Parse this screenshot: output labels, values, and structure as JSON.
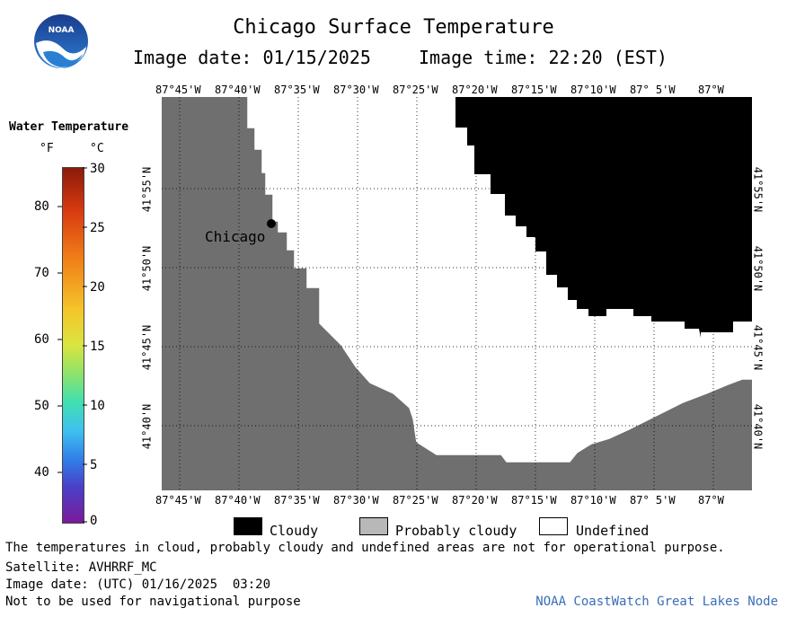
{
  "header": {
    "title": "Chicago Surface Temperature",
    "image_date_label": "Image date: 01/15/2025",
    "image_time_label": "Image time: 22:20 (EST)"
  },
  "logo": {
    "text": "NOAA"
  },
  "colorbar": {
    "title": "Water Temperature",
    "unit_f": "°F",
    "unit_c": "°C",
    "ticks_f": [
      "80",
      "70",
      "60",
      "50",
      "40"
    ],
    "ticks_c": [
      "30",
      "25",
      "20",
      "15",
      "10",
      "5",
      "0"
    ]
  },
  "map": {
    "lon_labels": [
      "87°45'W",
      "87°40'W",
      "87°35'W",
      "87°30'W",
      "87°25'W",
      "87°20'W",
      "87°15'W",
      "87°10'W",
      "87° 5'W",
      "87°W"
    ],
    "lat_labels": [
      "41°55'N",
      "41°50'N",
      "41°45'N",
      "41°40'N"
    ],
    "city_label": "Chicago",
    "colors": {
      "land": "#6f6f6f",
      "cloud": "#000000",
      "undefined": "#ffffff",
      "probably_cloudy": "#b8b8b8"
    }
  },
  "legend": {
    "cloudy": "Cloudy",
    "probably_cloudy": "Probably cloudy",
    "undefined": "Undefined"
  },
  "footer": {
    "note": "The temperatures in cloud, probably cloudy and undefined areas are not for operational purpose.",
    "satellite": "Satellite: AVHRRF_MC",
    "utc_date": "Image date: (UTC) 01/16/2025  03:20",
    "nav_warning": "Not to be used for navigational purpose",
    "credit": "NOAA CoastWatch Great Lakes Node"
  }
}
